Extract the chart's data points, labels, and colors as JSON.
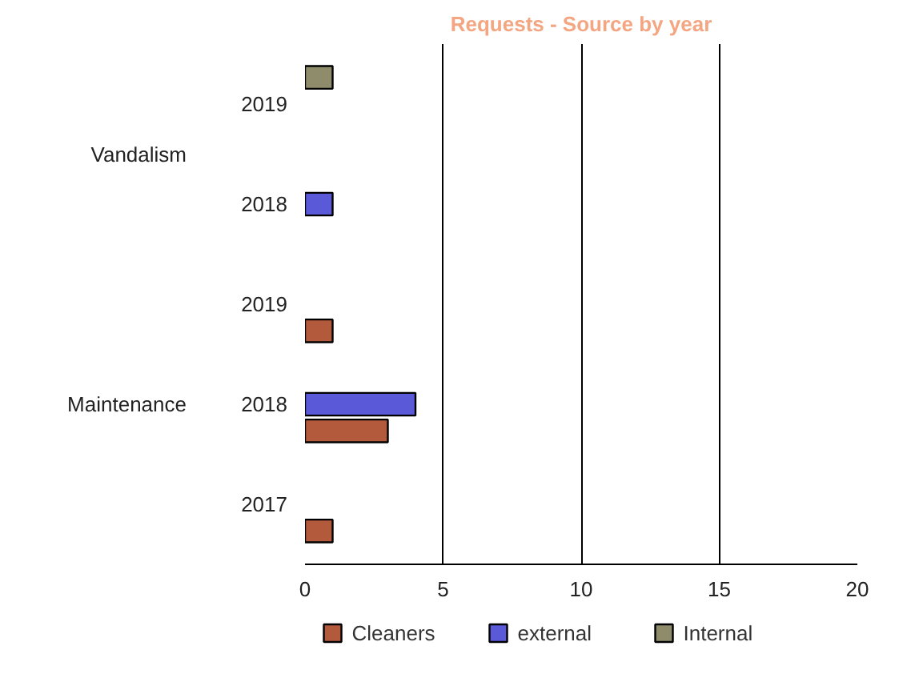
{
  "chart_data": {
    "type": "bar",
    "orientation": "horizontal",
    "title": "Requests - Source by year",
    "categories": [
      "2019",
      "2018",
      "2019",
      "2018",
      "2017"
    ],
    "annotations": [
      "Vandalism",
      "Maintenance"
    ],
    "series": [
      {
        "name": "Cleaners",
        "color": "#b35a3c",
        "values": [
          null,
          null,
          1,
          3,
          1
        ]
      },
      {
        "name": "external",
        "color": "#5a5ad8",
        "values": [
          null,
          1,
          null,
          4,
          null
        ]
      },
      {
        "name": "Internal",
        "color": "#8f8c6b",
        "values": [
          1,
          null,
          null,
          null,
          null
        ]
      }
    ],
    "xlim": [
      0,
      20
    ],
    "xticks": [
      0,
      5,
      10,
      15,
      20
    ],
    "grid": "x",
    "legend": "bottom"
  }
}
